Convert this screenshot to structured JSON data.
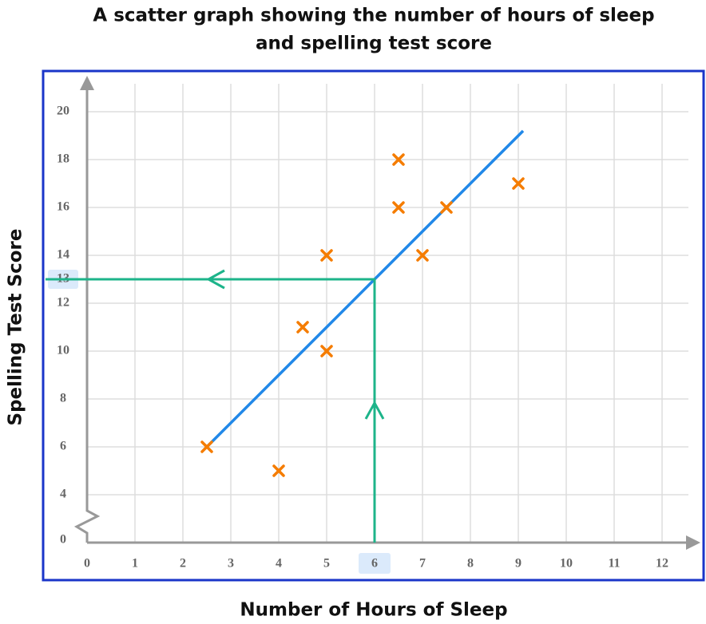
{
  "chart_data": {
    "type": "scatter",
    "title": [
      "A scatter graph showing the number of hours of sleep",
      "and spelling test score"
    ],
    "x_label": "Number of Hours of Sleep",
    "y_label": "Spelling Test Score",
    "x": [
      2.5,
      4,
      4.5,
      5,
      5,
      6.5,
      6.5,
      7,
      7.5,
      9
    ],
    "y": [
      6,
      5,
      11,
      10,
      14,
      18,
      16,
      14,
      16,
      17
    ],
    "color": "#f57c00",
    "xlim": [
      0,
      12.8
    ],
    "ylim": [
      0,
      21.5
    ],
    "y_break": [
      0,
      2
    ],
    "xticks": [
      0,
      1,
      2,
      3,
      4,
      5,
      6,
      7,
      8,
      9,
      10,
      11,
      12
    ],
    "yticks": [
      0,
      4,
      6,
      8,
      10,
      12,
      14,
      16,
      18,
      20
    ],
    "grid": true,
    "best_fit": {
      "x": [
        2.5,
        9.1
      ],
      "y": [
        6,
        19.2
      ],
      "color": "#2188e8"
    },
    "estimate": {
      "x": 6,
      "y": 13,
      "color": "#1db48a"
    }
  }
}
